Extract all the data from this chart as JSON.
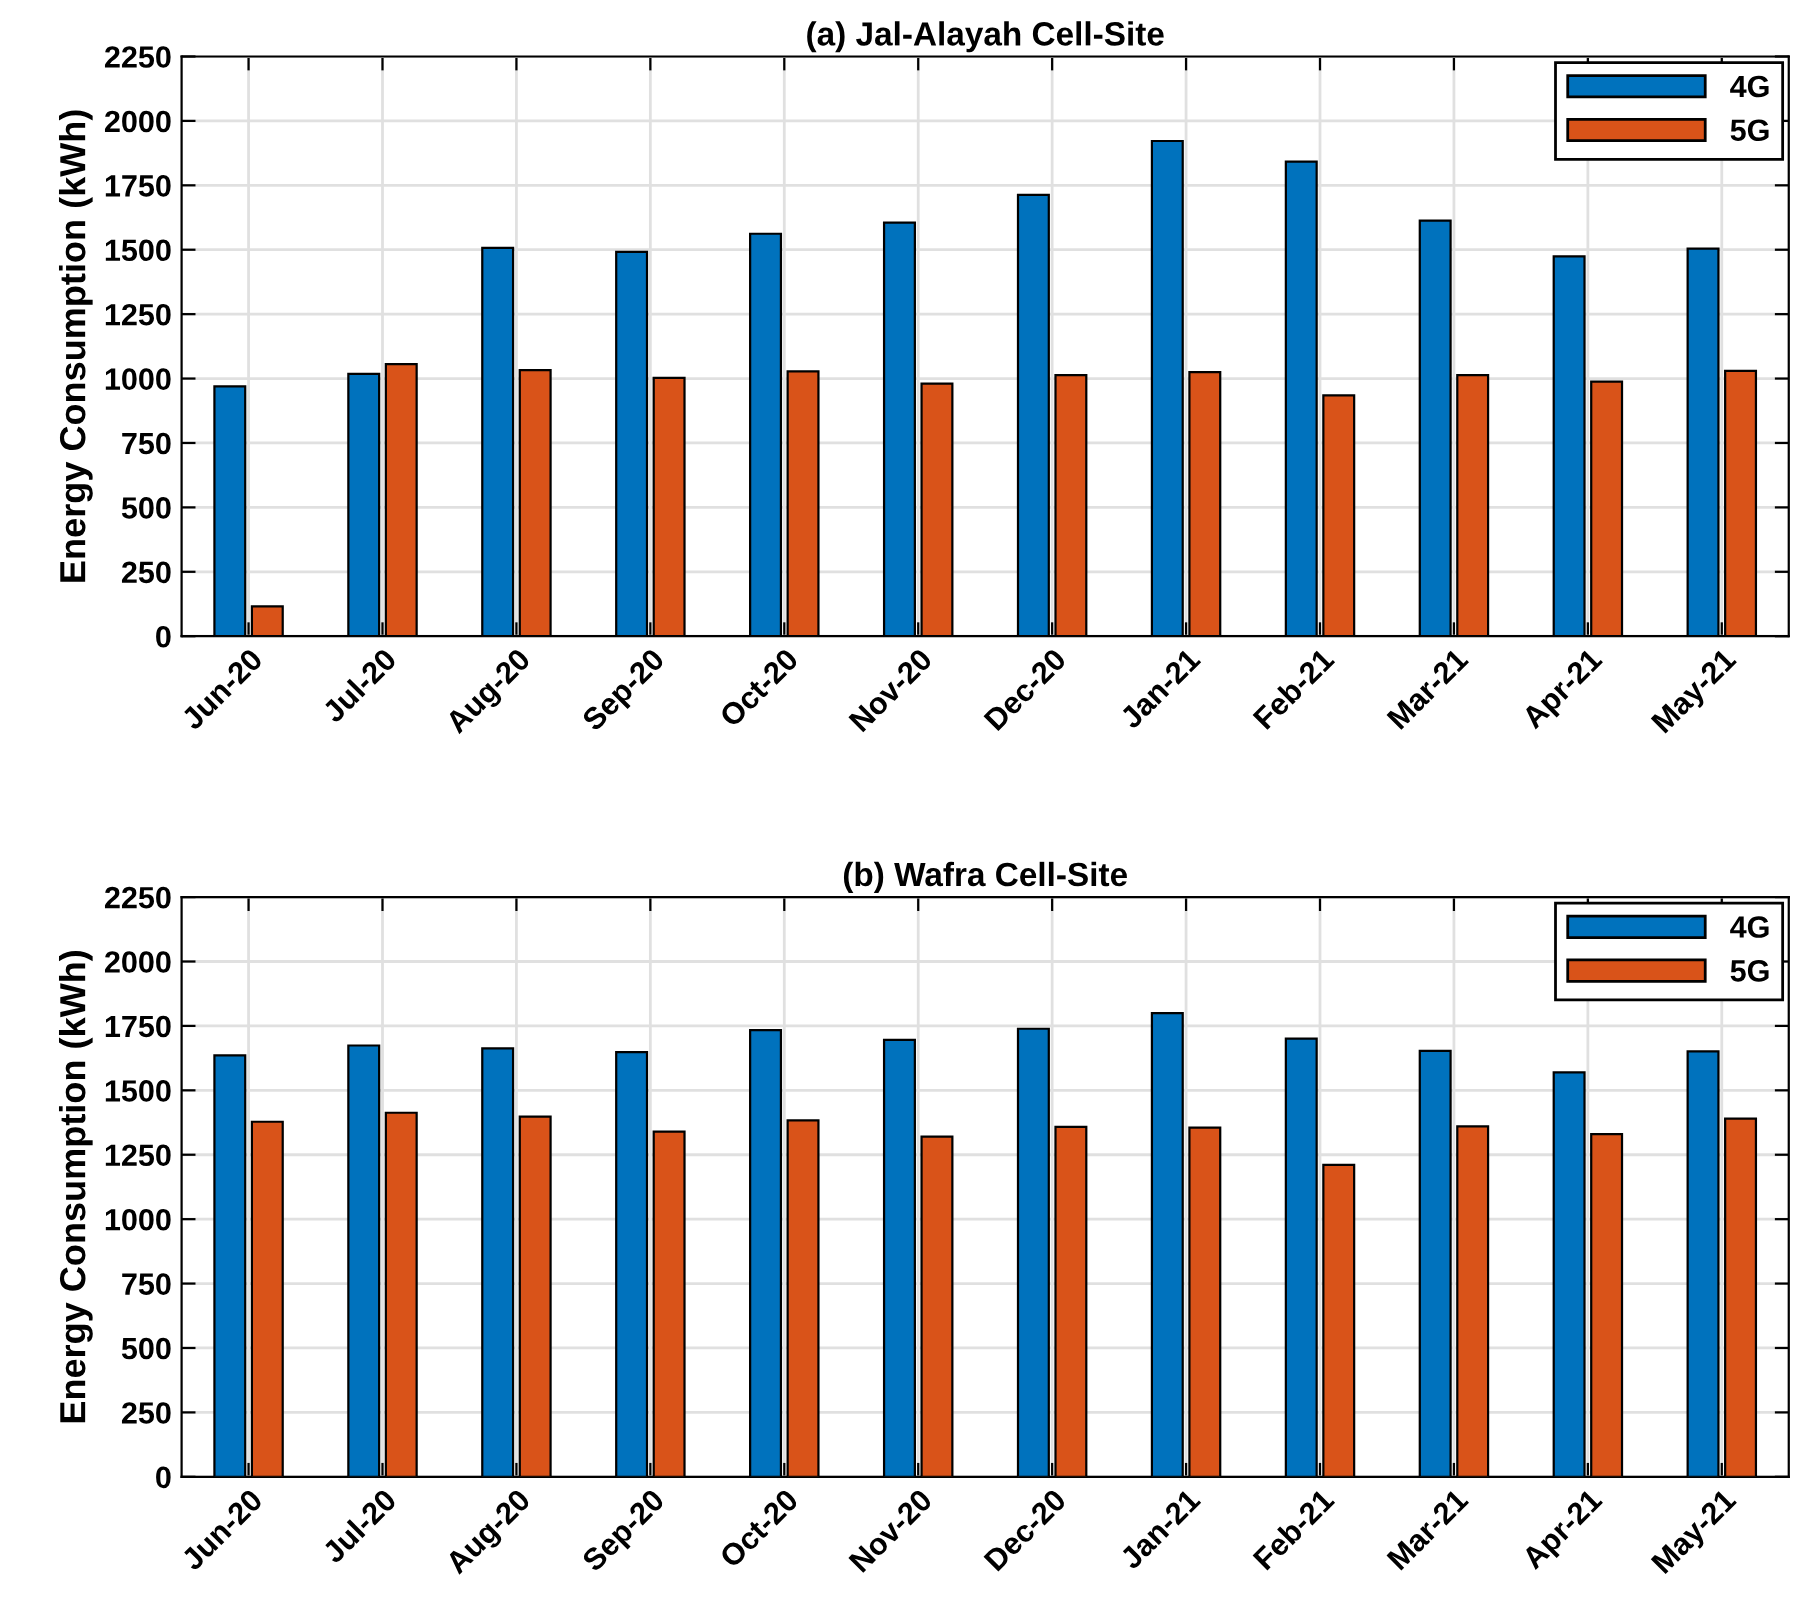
{
  "chart_data": [
    {
      "type": "bar",
      "title": "(a) Jal-Alayah Cell-Site",
      "ylabel": "Energy Consumption (kWh)",
      "categories": [
        "Jun-20",
        "Jul-20",
        "Aug-20",
        "Sep-20",
        "Oct-20",
        "Nov-20",
        "Dec-20",
        "Jan-21",
        "Feb-21",
        "Mar-21",
        "Apr-21",
        "May-21"
      ],
      "series": [
        {
          "name": "4G",
          "color": "#0072bd",
          "values": [
            970,
            1018,
            1507,
            1492,
            1562,
            1605,
            1713,
            1922,
            1842,
            1613,
            1474,
            1504
          ]
        },
        {
          "name": "5G",
          "color": "#d95319",
          "values": [
            116,
            1056,
            1033,
            1003,
            1028,
            980,
            1013,
            1025,
            935,
            1013,
            988,
            1030
          ]
        }
      ],
      "ylim": [
        0,
        2250
      ],
      "yticks": [
        0,
        250,
        500,
        750,
        1000,
        1250,
        1500,
        1750,
        2000,
        2250
      ],
      "grid": true,
      "legend": "top right"
    },
    {
      "type": "bar",
      "title": "(b) Wafra Cell-Site",
      "ylabel": "Energy Consumption (kWh)",
      "categories": [
        "Jun-20",
        "Jul-20",
        "Aug-20",
        "Sep-20",
        "Oct-20",
        "Nov-20",
        "Dec-20",
        "Jan-21",
        "Feb-21",
        "Mar-21",
        "Apr-21",
        "May-21"
      ],
      "series": [
        {
          "name": "4G",
          "color": "#0072bd",
          "values": [
            1636,
            1674,
            1663,
            1648,
            1734,
            1696,
            1739,
            1800,
            1701,
            1653,
            1570,
            1651
          ]
        },
        {
          "name": "5G",
          "color": "#d95319",
          "values": [
            1378,
            1413,
            1398,
            1340,
            1383,
            1320,
            1358,
            1355,
            1211,
            1360,
            1330,
            1390
          ]
        }
      ],
      "ylim": [
        0,
        2250
      ],
      "yticks": [
        0,
        250,
        500,
        750,
        1000,
        1250,
        1500,
        1750,
        2000,
        2250
      ],
      "grid": true,
      "legend": "top right"
    }
  ]
}
